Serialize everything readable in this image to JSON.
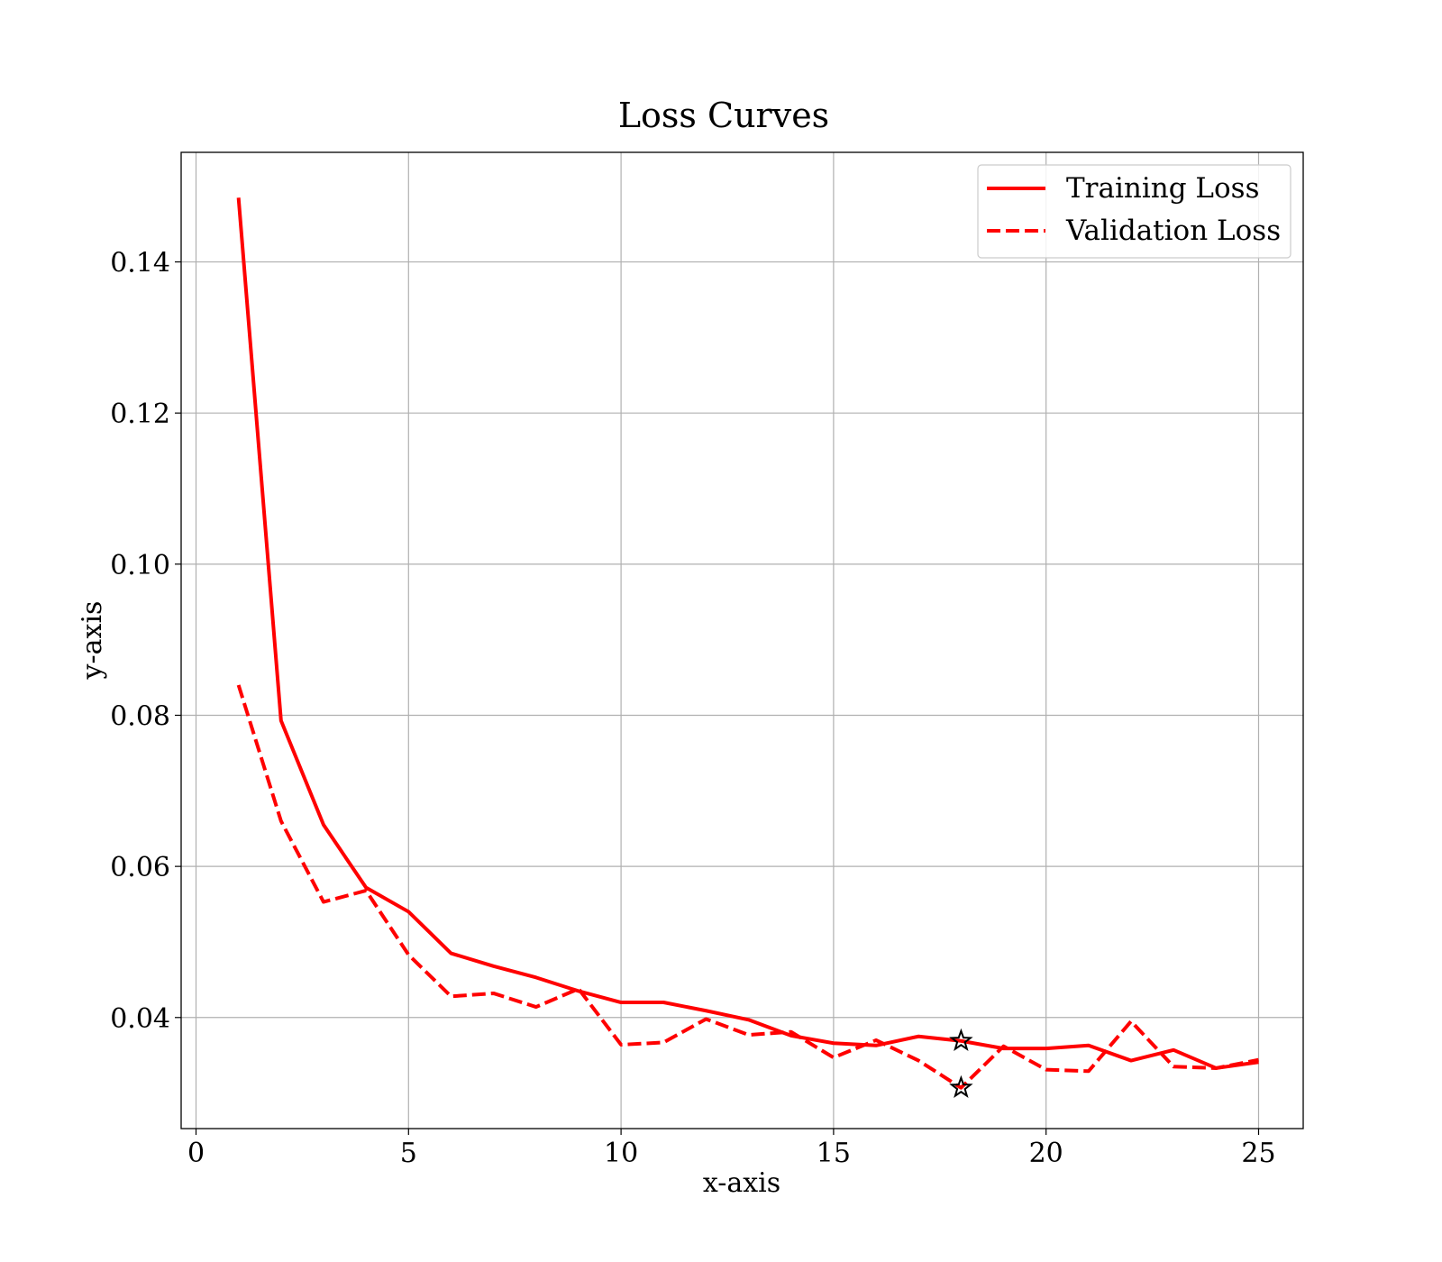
{
  "chart_data": {
    "type": "line",
    "title": "Loss Curves",
    "xlabel": "x-axis",
    "ylabel": "y-axis",
    "xlim": [
      -0.35,
      26.05
    ],
    "ylim": [
      0.0253,
      0.1545
    ],
    "xticks": [
      0,
      5,
      10,
      15,
      20,
      25
    ],
    "xtick_labels": [
      "0",
      "5",
      "10",
      "15",
      "20",
      "25"
    ],
    "yticks": [
      0.04,
      0.06,
      0.08,
      0.1,
      0.12,
      0.14
    ],
    "ytick_labels": [
      "0.04",
      "0.06",
      "0.08",
      "0.10",
      "0.12",
      "0.14"
    ],
    "grid": true,
    "legend_position": "top-right",
    "x": [
      1,
      2,
      3,
      4,
      5,
      6,
      7,
      8,
      9,
      10,
      11,
      12,
      13,
      14,
      15,
      16,
      17,
      18,
      19,
      20,
      21,
      22,
      23,
      24,
      25
    ],
    "series": [
      {
        "name": "Training Loss",
        "color": "#ff0000",
        "linestyle": "solid",
        "values": [
          0.1485,
          0.0793,
          0.0655,
          0.0572,
          0.054,
          0.0485,
          0.0468,
          0.0453,
          0.0435,
          0.042,
          0.042,
          0.0409,
          0.0397,
          0.0376,
          0.0366,
          0.0363,
          0.0375,
          0.0369,
          0.0359,
          0.0359,
          0.0363,
          0.0343,
          0.0357,
          0.0333,
          0.0341
        ]
      },
      {
        "name": "Validation Loss",
        "color": "#ff0000",
        "linestyle": "dashed",
        "values": [
          0.084,
          0.066,
          0.0553,
          0.0568,
          0.0483,
          0.0428,
          0.0432,
          0.0414,
          0.0438,
          0.0364,
          0.0367,
          0.0398,
          0.0377,
          0.0381,
          0.0347,
          0.037,
          0.0343,
          0.0307,
          0.0362,
          0.0331,
          0.0329,
          0.0395,
          0.0335,
          0.0333,
          0.0344
        ]
      }
    ],
    "markers": [
      {
        "series": "Training Loss",
        "x": 18,
        "y": 0.0369,
        "shape": "star",
        "color": "#000000"
      },
      {
        "series": "Validation Loss",
        "x": 18,
        "y": 0.0307,
        "shape": "star",
        "color": "#000000"
      }
    ]
  }
}
